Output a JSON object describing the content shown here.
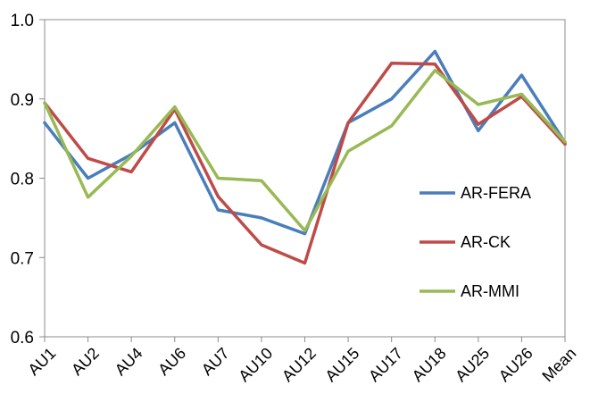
{
  "chart_data": {
    "type": "line",
    "categories": [
      "AU1",
      "AU2",
      "AU4",
      "AU6",
      "AU7",
      "AU10",
      "AU12",
      "AU15",
      "AU17",
      "AU18",
      "AU25",
      "AU26",
      "Mean"
    ],
    "series": [
      {
        "name": "AR-FERA",
        "color": "#4a7ebb",
        "values": [
          0.87,
          0.8,
          0.83,
          0.87,
          0.76,
          0.75,
          0.73,
          0.87,
          0.9,
          0.96,
          0.86,
          0.93,
          0.845
        ]
      },
      {
        "name": "AR-CK",
        "color": "#be4b48",
        "values": [
          0.895,
          0.825,
          0.808,
          0.887,
          0.777,
          0.716,
          0.693,
          0.87,
          0.945,
          0.944,
          0.868,
          0.903,
          0.843
        ]
      },
      {
        "name": "AR-MMI",
        "color": "#98b954",
        "values": [
          0.895,
          0.776,
          0.828,
          0.89,
          0.8,
          0.797,
          0.734,
          0.834,
          0.866,
          0.936,
          0.893,
          0.906,
          0.846
        ]
      }
    ],
    "ylim": [
      0.6,
      1.0
    ],
    "yticks": [
      "0.6",
      "0.7",
      "0.8",
      "0.9",
      "1.0"
    ],
    "xlabel": "",
    "ylabel": "",
    "grid": false,
    "legend_position": "right"
  }
}
